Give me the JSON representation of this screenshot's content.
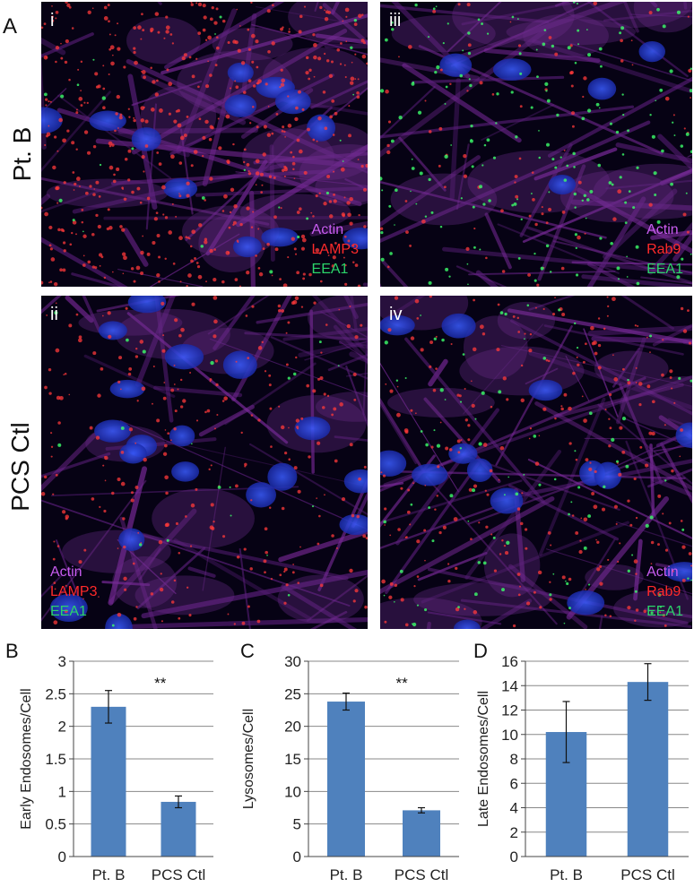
{
  "figure": {
    "panel_a_letter": "A",
    "row_labels": [
      "Pt. B",
      "PCS Ctl"
    ],
    "micrographs": [
      {
        "id": "i",
        "roman": "i",
        "legend": [
          "Actin",
          "LAMP3",
          "EEA1"
        ],
        "legend_align": "right"
      },
      {
        "id": "iii",
        "roman": "iii",
        "legend": [
          "Actin",
          "Rab9",
          "EEA1"
        ],
        "legend_align": "right"
      },
      {
        "id": "ii",
        "roman": "ii",
        "legend": [
          "Actin",
          "LAMP3",
          "EEA1"
        ],
        "legend_align": "left"
      },
      {
        "id": "iv",
        "roman": "iv",
        "legend": [
          "Actin",
          "Rab9",
          "EEA1"
        ],
        "legend_align": "right"
      }
    ],
    "colors": {
      "actin": "#c85cf0",
      "marker": "#ff2a2a",
      "eea1": "#2bd46a",
      "bar": "#4f81bd"
    }
  },
  "chart_data": [
    {
      "panel": "B",
      "type": "bar",
      "categories": [
        "Pt. B",
        "PCS Ctl"
      ],
      "values": [
        2.3,
        0.84
      ],
      "errors": [
        0.25,
        0.09
      ],
      "ylabel": "Early Endosomes/Cell",
      "ylim": [
        0,
        3
      ],
      "yticks": [
        "0",
        "0.5",
        "1",
        "1.5",
        "2",
        "2.5",
        "3"
      ],
      "annotation": "**",
      "grid": true
    },
    {
      "panel": "C",
      "type": "bar",
      "categories": [
        "Pt. B",
        "PCS Ctl"
      ],
      "values": [
        23.8,
        7.1
      ],
      "errors": [
        1.3,
        0.4
      ],
      "ylabel": "Lysosomes/Cell",
      "ylim": [
        0,
        30
      ],
      "yticks": [
        "0",
        "5",
        "10",
        "15",
        "20",
        "25",
        "30"
      ],
      "annotation": "**",
      "grid": true
    },
    {
      "panel": "D",
      "type": "bar",
      "categories": [
        "Pt. B",
        "PCS Ctl"
      ],
      "values": [
        10.2,
        14.3
      ],
      "errors": [
        2.5,
        1.5
      ],
      "ylabel": "Late Endosomes/Cell",
      "ylim": [
        0,
        16
      ],
      "yticks": [
        "0",
        "2",
        "4",
        "6",
        "8",
        "10",
        "12",
        "14",
        "16"
      ],
      "annotation": "",
      "grid": true
    }
  ]
}
